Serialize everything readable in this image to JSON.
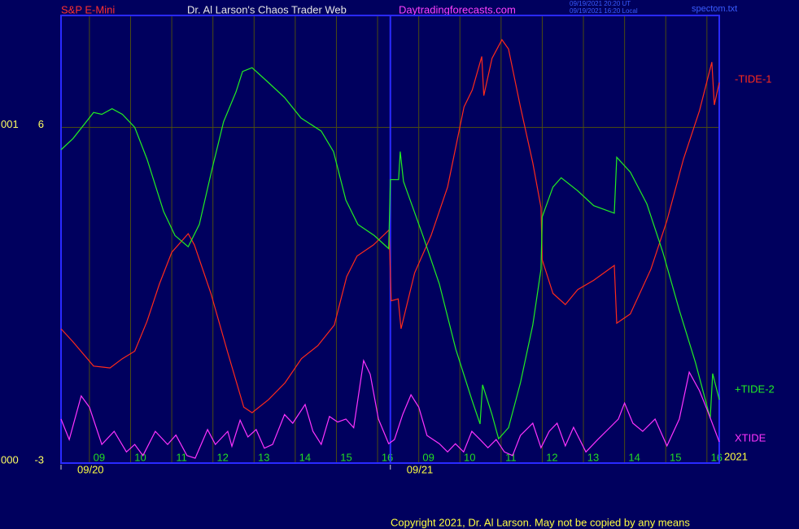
{
  "chart_data": {
    "type": "line",
    "market": "S&P E-Mini",
    "title": "Dr. Al Larson's Chaos Trader Web",
    "website": "Daytradingforecasts.com",
    "timestamps": [
      "09/19/2021 20:20 UT",
      "09/19/2021 16:20 Local"
    ],
    "file": "spectom.txt",
    "copyright": "Copyright 2021, Dr. Al Larson. May not be copied by any means",
    "year": "2021",
    "axis_prefixes": [
      "000",
      "001"
    ],
    "xlim": [
      -0.69,
      15.3
    ],
    "ylim": [
      -3,
      9
    ],
    "yticks": [
      -3,
      6
    ],
    "xticks": [
      {
        "value": 0,
        "label": "09"
      },
      {
        "value": 1,
        "label": "10"
      },
      {
        "value": 2,
        "label": "11"
      },
      {
        "value": 3,
        "label": "12"
      },
      {
        "value": 4,
        "label": "13"
      },
      {
        "value": 5,
        "label": "14"
      },
      {
        "value": 6,
        "label": "15"
      },
      {
        "value": 7,
        "label": "16"
      },
      {
        "value": 8,
        "label": "09"
      },
      {
        "value": 9,
        "label": "10"
      },
      {
        "value": 10,
        "label": "11"
      },
      {
        "value": 11,
        "label": "12"
      },
      {
        "value": 12,
        "label": "13"
      },
      {
        "value": 13,
        "label": "14"
      },
      {
        "value": 14,
        "label": "15"
      },
      {
        "value": 15,
        "label": "16"
      }
    ],
    "sessions": [
      {
        "start": -0.69,
        "label": "09/20"
      },
      {
        "start": 7.31,
        "label": "09/21"
      }
    ],
    "grid": true,
    "series": [
      {
        "name": "-TIDE-1",
        "color": "#ff2a1a",
        "x": [
          -0.69,
          -0.4,
          0.1,
          0.5,
          0.8,
          1.1,
          1.4,
          1.7,
          2.0,
          2.4,
          2.55,
          2.95,
          3.35,
          3.75,
          3.95,
          4.35,
          4.75,
          5.15,
          5.55,
          5.95,
          6.25,
          6.5,
          6.9,
          7.28,
          7.33,
          7.5,
          7.57,
          7.9,
          8.3,
          8.7,
          9.1,
          9.3,
          9.53,
          9.58,
          9.78,
          10.02,
          10.18,
          10.47,
          10.77,
          10.97,
          11.0,
          11.26,
          11.56,
          11.86,
          12.25,
          12.75,
          12.81,
          13.14,
          13.64,
          14.03,
          14.43,
          14.82,
          15.12,
          15.18,
          15.3
        ],
        "values": [
          0.6,
          0.25,
          -0.4,
          -0.45,
          -0.2,
          0.0,
          0.8,
          1.8,
          2.65,
          3.15,
          2.85,
          1.55,
          0.0,
          -1.5,
          -1.65,
          -1.3,
          -0.85,
          -0.2,
          0.15,
          0.7,
          2.0,
          2.55,
          2.85,
          3.25,
          1.35,
          1.4,
          0.6,
          2.1,
          3.1,
          4.4,
          6.55,
          7.0,
          7.9,
          6.85,
          7.85,
          8.35,
          8.1,
          6.55,
          5.05,
          3.85,
          2.45,
          1.55,
          1.25,
          1.65,
          1.9,
          2.3,
          0.75,
          1.0,
          2.2,
          3.5,
          5.15,
          6.45,
          7.75,
          6.6,
          7.2
        ]
      },
      {
        "name": "+TIDE-2",
        "color": "#22ee22",
        "x": [
          -0.69,
          -0.4,
          0.1,
          0.3,
          0.55,
          0.8,
          1.1,
          1.4,
          1.8,
          2.08,
          2.4,
          2.67,
          2.96,
          3.26,
          3.56,
          3.72,
          3.95,
          4.35,
          4.74,
          5.14,
          5.63,
          5.93,
          6.23,
          6.52,
          6.92,
          7.27,
          7.31,
          7.51,
          7.55,
          7.63,
          7.71,
          8.1,
          8.5,
          8.9,
          9.29,
          9.49,
          9.55,
          9.78,
          9.94,
          10.18,
          10.47,
          10.77,
          10.97,
          11.0,
          11.26,
          11.46,
          11.86,
          12.25,
          12.75,
          12.81,
          13.14,
          13.54,
          13.93,
          14.33,
          14.72,
          15.08,
          15.14,
          15.3
        ],
        "values": [
          5.4,
          5.7,
          6.4,
          6.35,
          6.5,
          6.35,
          6.0,
          5.15,
          3.75,
          3.1,
          2.8,
          3.4,
          4.8,
          6.15,
          6.95,
          7.5,
          7.6,
          7.2,
          6.8,
          6.25,
          5.9,
          5.35,
          4.05,
          3.4,
          3.1,
          2.75,
          4.6,
          4.6,
          5.35,
          4.55,
          4.3,
          3.1,
          1.8,
          0.05,
          -1.3,
          -1.95,
          -0.9,
          -1.7,
          -2.35,
          -2.05,
          -0.85,
          0.7,
          2.2,
          3.6,
          4.4,
          4.65,
          4.3,
          3.9,
          3.7,
          5.2,
          4.8,
          3.95,
          2.65,
          1.1,
          -0.3,
          -1.8,
          -0.6,
          -1.3
        ]
      },
      {
        "name": "XTIDE",
        "color": "#ff33ff",
        "x": [
          -0.69,
          -0.49,
          -0.2,
          0,
          0.3,
          0.6,
          0.9,
          1.1,
          1.3,
          1.6,
          1.9,
          2.1,
          2.37,
          2.57,
          2.87,
          3.06,
          3.36,
          3.46,
          3.66,
          3.85,
          4.05,
          4.25,
          4.45,
          4.74,
          4.94,
          5.24,
          5.43,
          5.63,
          5.83,
          6.03,
          6.23,
          6.42,
          6.66,
          6.82,
          7.02,
          7.27,
          7.41,
          7.61,
          7.81,
          8.0,
          8.2,
          8.5,
          8.7,
          8.89,
          9.09,
          9.29,
          9.49,
          9.68,
          9.88,
          10.08,
          10.28,
          10.47,
          10.77,
          10.97,
          11.17,
          11.36,
          11.56,
          11.76,
          12.06,
          12.35,
          12.65,
          12.85,
          13.0,
          13.2,
          13.44,
          13.74,
          14.03,
          14.33,
          14.57,
          14.82,
          15.02,
          15.3
        ],
        "values": [
          -1.82,
          -2.37,
          -1.2,
          -1.5,
          -2.5,
          -2.15,
          -2.7,
          -2.5,
          -2.8,
          -2.15,
          -2.5,
          -2.25,
          -2.8,
          -2.87,
          -2.1,
          -2.5,
          -2.15,
          -2.55,
          -1.85,
          -2.3,
          -2.1,
          -2.6,
          -2.5,
          -1.7,
          -1.93,
          -1.43,
          -2.15,
          -2.5,
          -1.75,
          -1.9,
          -1.82,
          -2.05,
          -0.25,
          -0.62,
          -1.82,
          -2.48,
          -2.37,
          -1.7,
          -1.17,
          -1.5,
          -2.26,
          -2.48,
          -2.7,
          -2.48,
          -2.7,
          -2.15,
          -2.37,
          -2.59,
          -2.37,
          -2.7,
          -2.8,
          -2.26,
          -1.93,
          -2.59,
          -2.15,
          -1.93,
          -2.54,
          -2.04,
          -2.7,
          -2.37,
          -2.04,
          -1.82,
          -1.39,
          -1.93,
          -2.15,
          -1.82,
          -2.54,
          -1.82,
          -0.56,
          -1.06,
          -1.61,
          -2.43
        ]
      }
    ]
  }
}
